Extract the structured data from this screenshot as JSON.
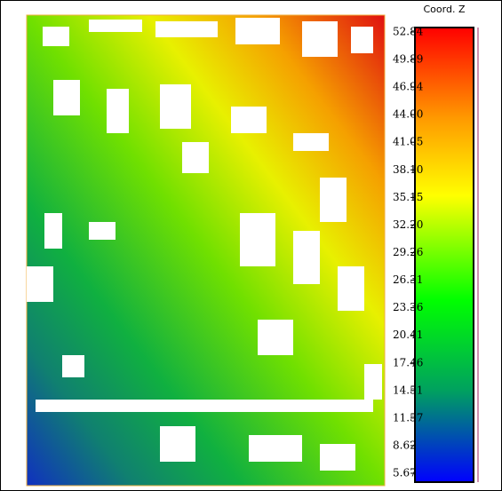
{
  "scalar_field": {
    "title": "Coord. Z",
    "range": [
      5.67,
      52.84
    ],
    "ticks": [
      52.84,
      49.89,
      46.94,
      {
        "value": 44,
        "label": "44.00"
      },
      41.05,
      {
        "value": 38.1,
        "label": "38.10"
      },
      35.15,
      {
        "value": 32.2,
        "label": "32.20"
      },
      29.26,
      26.31,
      23.36,
      20.41,
      17.46,
      14.51,
      11.57,
      8.62,
      5.67
    ]
  }
}
